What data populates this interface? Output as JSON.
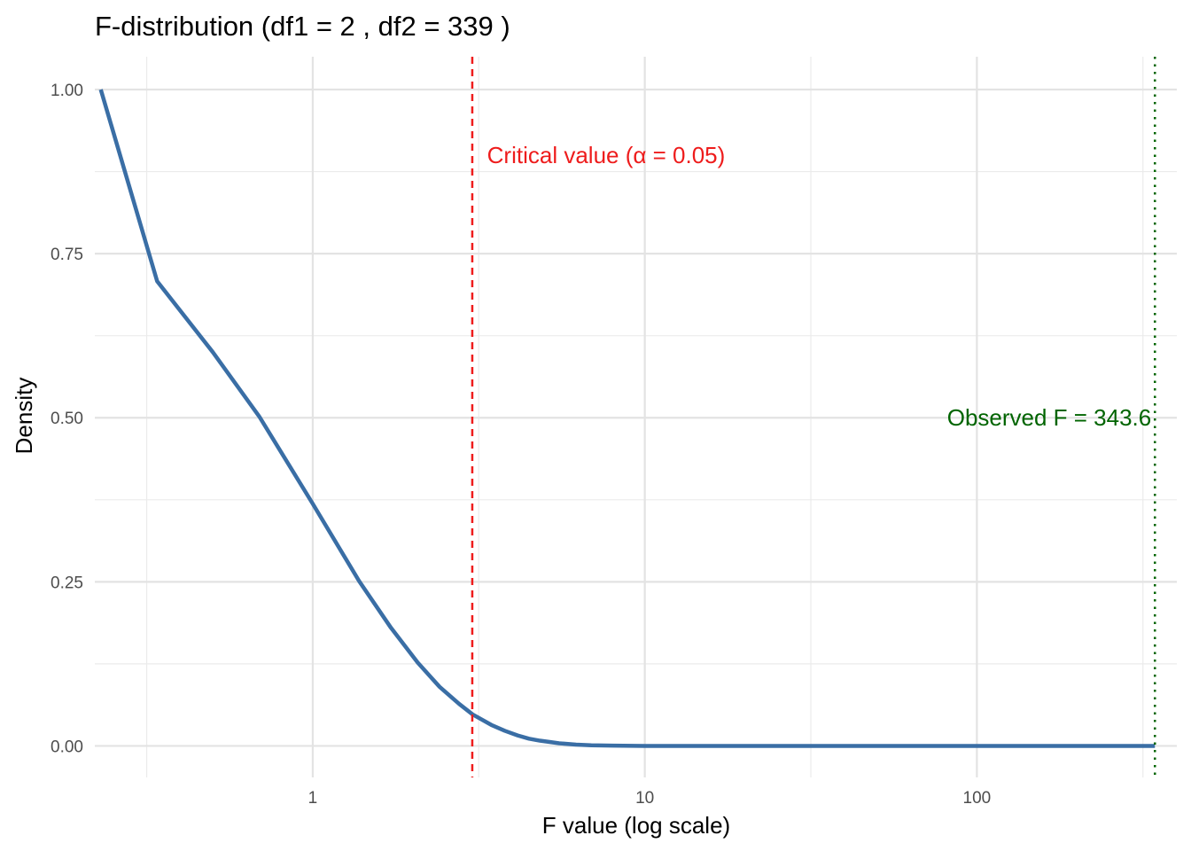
{
  "chart_data": {
    "type": "line",
    "title": "F-distribution (df1 = 2 , df2 = 339 )",
    "xlabel": "F value (log scale)",
    "ylabel": "Density",
    "x_scale": "log10",
    "xlim": [
      0.2207,
      400
    ],
    "ylim": [
      -0.048,
      1.05
    ],
    "x_ticks": [
      {
        "value": 1,
        "label": "1"
      },
      {
        "value": 10,
        "label": "10"
      },
      {
        "value": 100,
        "label": "100"
      }
    ],
    "x_minor_ticks": [
      0.3162,
      3.162,
      31.62,
      316.2
    ],
    "y_ticks": [
      {
        "value": 0.0,
        "label": "0.00"
      },
      {
        "value": 0.25,
        "label": "0.25"
      },
      {
        "value": 0.5,
        "label": "0.50"
      },
      {
        "value": 0.75,
        "label": "0.75"
      },
      {
        "value": 1.0,
        "label": "1.00"
      }
    ],
    "y_minor_ticks": [
      0.125,
      0.375,
      0.625,
      0.875
    ],
    "grid": true,
    "series": [
      {
        "color": "#3a6ea5",
        "x": [
          0.23,
          0.34,
          0.5,
          0.69,
          1.0,
          1.38,
          1.72,
          2.07,
          2.41,
          2.76,
          3.03,
          3.45,
          3.79,
          4.14,
          4.48,
          4.83,
          5.17,
          5.52,
          6.21,
          6.9,
          8.0,
          10,
          20,
          50,
          100,
          200,
          343.6
        ],
        "y": [
          1.0,
          0.708,
          0.6,
          0.502,
          0.369,
          0.251,
          0.18,
          0.127,
          0.09,
          0.064,
          0.048,
          0.032,
          0.023,
          0.016,
          0.011,
          0.008,
          0.006,
          0.004,
          0.002,
          0.001,
          0.0005,
          0.0,
          0.0,
          0.0,
          0.0,
          0.0,
          0.0
        ]
      }
    ],
    "reference_lines": [
      {
        "x": 3.023,
        "color": "#ee1c1c",
        "style": "dashed",
        "label": "Critical value (α = 0.05)",
        "label_x": 3.35,
        "label_y": 0.9,
        "anchor": "start"
      },
      {
        "x": 343.6,
        "color": "#006400",
        "style": "dotted",
        "label": "Observed F = 343.6",
        "label_x": 343.6,
        "label_y": 0.5,
        "anchor": "end"
      }
    ]
  }
}
